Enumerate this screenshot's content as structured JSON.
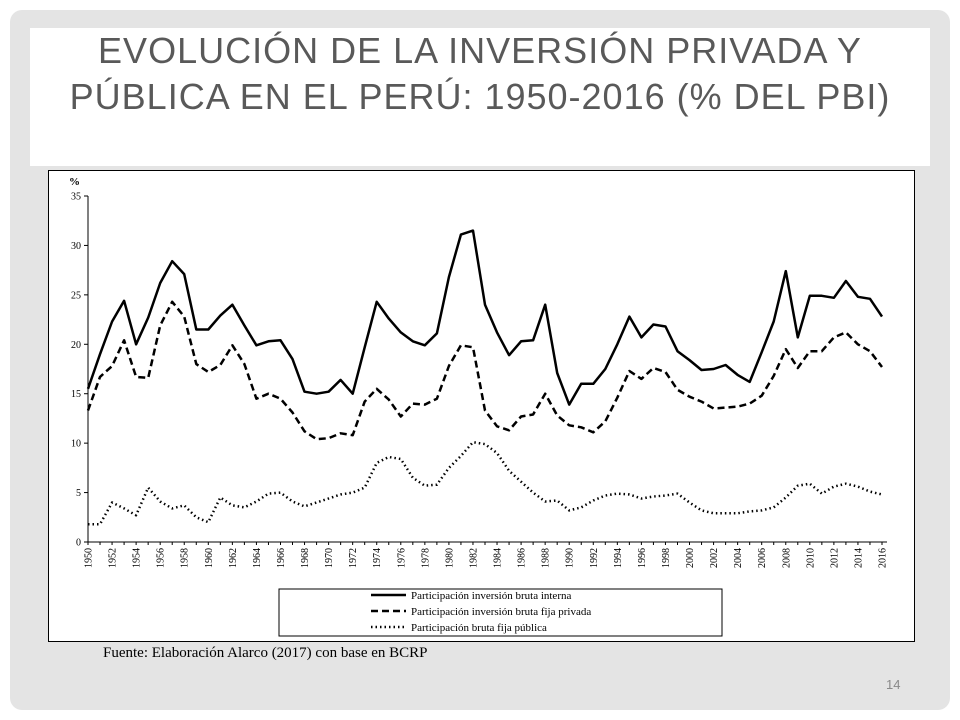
{
  "slide": {
    "title": "Evolución de la inversión privada y pública en el Perú: 1950-2016 (% del PBI)",
    "source": "Fuente: Elaboración Alarco (2017) con base en BCRP",
    "page_number": "14"
  },
  "chart_data": {
    "type": "line",
    "title": "",
    "xlabel": "",
    "ylabel": "%",
    "ylim": [
      0,
      35
    ],
    "yticks": [
      0,
      5,
      10,
      15,
      20,
      25,
      30,
      35
    ],
    "x_tick_labels": [
      "1950",
      "1952",
      "1954",
      "1956",
      "1958",
      "1960",
      "1962",
      "1964",
      "1966",
      "1968",
      "1970",
      "1972",
      "1974",
      "1976",
      "1978",
      "1980",
      "1982",
      "1984",
      "1986",
      "1988",
      "1990",
      "1992",
      "1994",
      "1996",
      "1998",
      "2000",
      "2002",
      "2004",
      "2006",
      "2008",
      "2010",
      "2012",
      "2014",
      "2016"
    ],
    "x": [
      1950,
      1951,
      1952,
      1953,
      1954,
      1955,
      1956,
      1957,
      1958,
      1959,
      1960,
      1961,
      1962,
      1963,
      1964,
      1965,
      1966,
      1967,
      1968,
      1969,
      1970,
      1971,
      1972,
      1973,
      1974,
      1975,
      1976,
      1977,
      1978,
      1979,
      1980,
      1981,
      1982,
      1983,
      1984,
      1985,
      1986,
      1987,
      1988,
      1989,
      1990,
      1991,
      1992,
      1993,
      1994,
      1995,
      1996,
      1997,
      1998,
      1999,
      2000,
      2001,
      2002,
      2003,
      2004,
      2005,
      2006,
      2007,
      2008,
      2009,
      2010,
      2011,
      2012,
      2013,
      2014,
      2015,
      2016
    ],
    "grid": false,
    "legend_position": "bottom",
    "series": [
      {
        "name": "Participación inversión bruta interna",
        "style": "solid",
        "values": [
          15.5,
          19.0,
          22.3,
          24.4,
          20.0,
          22.7,
          26.2,
          28.4,
          27.1,
          21.5,
          21.5,
          22.9,
          24.0,
          21.9,
          19.9,
          20.3,
          20.4,
          18.5,
          15.2,
          15.0,
          15.2,
          16.4,
          15.0,
          19.7,
          24.3,
          22.6,
          21.2,
          20.3,
          19.9,
          21.1,
          26.8,
          31.1,
          31.5,
          24.0,
          21.2,
          18.9,
          20.3,
          20.4,
          24.0,
          17.1,
          13.9,
          16.0,
          16.0,
          17.5,
          20.0,
          22.8,
          20.7,
          22.0,
          21.8,
          19.3,
          18.4,
          17.4,
          17.5,
          17.9,
          16.9,
          16.2,
          19.2,
          22.3,
          27.4,
          20.7,
          24.9,
          24.9,
          24.7,
          26.4,
          24.8,
          24.6,
          22.8
        ]
      },
      {
        "name": "Participación inversión bruta fija privada",
        "style": "dashed",
        "values": [
          13.3,
          16.7,
          17.8,
          20.4,
          16.7,
          16.6,
          21.9,
          24.3,
          22.8,
          18.0,
          17.2,
          17.9,
          19.9,
          18.0,
          14.5,
          15.0,
          14.5,
          13.1,
          11.2,
          10.4,
          10.5,
          11.0,
          10.8,
          14.2,
          15.5,
          14.4,
          12.7,
          14.0,
          13.9,
          14.5,
          17.8,
          19.9,
          19.7,
          13.3,
          11.7,
          11.3,
          12.7,
          12.9,
          15.0,
          12.8,
          11.8,
          11.6,
          11.1,
          12.2,
          14.6,
          17.3,
          16.5,
          17.6,
          17.2,
          15.4,
          14.7,
          14.2,
          13.5,
          13.6,
          13.7,
          14.0,
          14.8,
          16.8,
          19.5,
          17.6,
          19.3,
          19.3,
          20.7,
          21.2,
          20.0,
          19.3,
          17.7
        ]
      },
      {
        "name": "Participación bruta fija pública",
        "style": "dotted",
        "values": [
          1.8,
          1.8,
          4.0,
          3.4,
          2.7,
          5.5,
          4.1,
          3.4,
          3.7,
          2.5,
          2.0,
          4.5,
          3.7,
          3.5,
          4.1,
          4.9,
          5.0,
          4.1,
          3.6,
          4.0,
          4.4,
          4.8,
          5.0,
          5.5,
          8.0,
          8.6,
          8.4,
          6.5,
          5.7,
          5.8,
          7.5,
          8.7,
          10.1,
          9.9,
          9.0,
          7.2,
          6.1,
          5.0,
          4.1,
          4.2,
          3.2,
          3.5,
          4.2,
          4.7,
          4.9,
          4.8,
          4.4,
          4.6,
          4.7,
          4.9,
          4.0,
          3.2,
          2.9,
          2.9,
          2.9,
          3.1,
          3.2,
          3.5,
          4.5,
          5.7,
          5.9,
          4.9,
          5.6,
          5.9,
          5.6,
          5.1,
          4.8
        ]
      }
    ]
  }
}
